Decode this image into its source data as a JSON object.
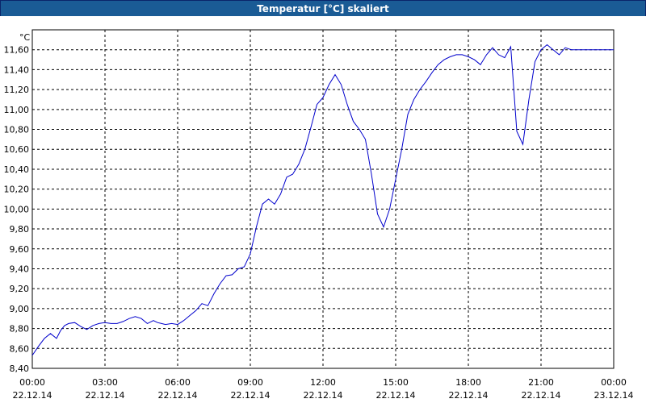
{
  "window": {
    "title": "Temperatur [°C] skaliert"
  },
  "chart_data": {
    "type": "line",
    "title": "Temperatur [°C] skaliert",
    "ylabel": "°C",
    "xlabel": "",
    "ylim": [
      8.4,
      11.8
    ],
    "yticks": [
      "8,40",
      "8,60",
      "8,80",
      "9,00",
      "9,20",
      "9,40",
      "9,60",
      "9,80",
      "10,00",
      "10,20",
      "10,40",
      "10,60",
      "10,80",
      "11,00",
      "11,20",
      "11,40",
      "11,60"
    ],
    "xticks": [
      {
        "time": "00:00",
        "date": "22.12.14"
      },
      {
        "time": "03:00",
        "date": "22.12.14"
      },
      {
        "time": "06:00",
        "date": "22.12.14"
      },
      {
        "time": "09:00",
        "date": "22.12.14"
      },
      {
        "time": "12:00",
        "date": "22.12.14"
      },
      {
        "time": "15:00",
        "date": "22.12.14"
      },
      {
        "time": "18:00",
        "date": "22.12.14"
      },
      {
        "time": "21:00",
        "date": "22.12.14"
      },
      {
        "time": "00:00",
        "date": "23.12.14"
      }
    ],
    "xlim": [
      "22.12.14 00:00",
      "23.12.14 00:00"
    ],
    "grid": true,
    "line_color": "#0000cc",
    "series": [
      {
        "x": [
          "00:00",
          "00:15",
          "00:30",
          "00:45",
          "01:00",
          "01:10",
          "01:20",
          "01:30",
          "01:45",
          "02:00",
          "02:15",
          "02:30",
          "02:45",
          "03:00",
          "03:15",
          "03:30",
          "03:45",
          "04:00",
          "04:15",
          "04:30",
          "04:45",
          "05:00",
          "05:10",
          "05:20",
          "05:30",
          "05:45",
          "06:00",
          "06:15",
          "06:30",
          "06:45",
          "07:00",
          "07:15",
          "07:30",
          "07:45",
          "08:00",
          "08:15",
          "08:30",
          "08:45",
          "09:00",
          "09:15",
          "09:30",
          "09:45",
          "10:00",
          "10:15",
          "10:30",
          "10:45",
          "11:00",
          "11:15",
          "11:30",
          "11:45",
          "12:00",
          "12:15",
          "12:30",
          "12:45",
          "13:00",
          "13:15",
          "13:30",
          "13:45",
          "14:00",
          "14:15",
          "14:30",
          "14:45",
          "15:00",
          "15:15",
          "15:30",
          "15:45",
          "16:00",
          "16:15",
          "16:30",
          "16:45",
          "17:00",
          "17:15",
          "17:30",
          "17:45",
          "18:00",
          "18:15",
          "18:30",
          "18:45",
          "19:00",
          "19:15",
          "19:30",
          "19:45",
          "20:00",
          "20:15",
          "20:30",
          "20:45",
          "21:00",
          "21:15",
          "21:30",
          "21:45",
          "22:00",
          "22:15",
          "22:30",
          "22:45",
          "23:00",
          "23:15",
          "23:30",
          "23:45",
          "24:00"
        ],
        "y": [
          8.53,
          8.62,
          8.7,
          8.75,
          8.7,
          8.78,
          8.83,
          8.85,
          8.86,
          8.82,
          8.79,
          8.83,
          8.85,
          8.86,
          8.85,
          8.85,
          8.87,
          8.9,
          8.92,
          8.9,
          8.85,
          8.88,
          8.86,
          8.85,
          8.84,
          8.85,
          8.84,
          8.88,
          8.93,
          8.98,
          9.05,
          9.03,
          9.15,
          9.25,
          9.33,
          9.34,
          9.4,
          9.42,
          9.55,
          9.82,
          10.05,
          10.1,
          10.05,
          10.15,
          10.32,
          10.35,
          10.45,
          10.6,
          10.82,
          11.05,
          11.12,
          11.25,
          11.35,
          11.25,
          11.05,
          10.88,
          10.8,
          10.7,
          10.35,
          9.95,
          9.82,
          10.0,
          10.3,
          10.6,
          10.95,
          11.1,
          11.2,
          11.28,
          11.37,
          11.45,
          11.5,
          11.53,
          11.55,
          11.55,
          11.53,
          11.5,
          11.45,
          11.55,
          11.62,
          11.55,
          11.52,
          11.63,
          10.78,
          10.65,
          11.1,
          11.48,
          11.6,
          11.65,
          11.6,
          11.55,
          11.62,
          11.6,
          11.6,
          11.6,
          11.6,
          11.6,
          11.6,
          11.6,
          11.6
        ]
      }
    ]
  }
}
